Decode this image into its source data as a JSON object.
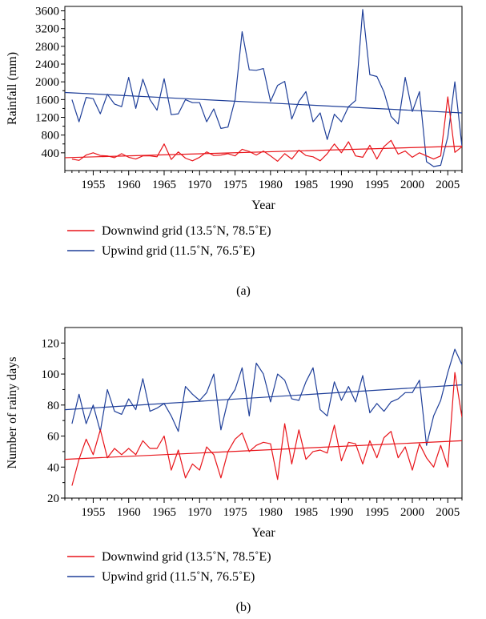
{
  "chart_data": [
    {
      "type": "line",
      "caption": "(a)",
      "xlabel": "Year",
      "ylabel": "Rainfall (mm)",
      "xlim": [
        1951,
        2007
      ],
      "ylim": [
        0,
        3700
      ],
      "xticks": [
        1955,
        1960,
        1965,
        1970,
        1975,
        1980,
        1985,
        1990,
        1995,
        2000,
        2005
      ],
      "yticks": [
        400,
        800,
        1200,
        1600,
        2000,
        2400,
        2800,
        3200,
        3600
      ],
      "legend_position": "bottom",
      "x": [
        1952,
        1953,
        1954,
        1955,
        1956,
        1957,
        1958,
        1959,
        1960,
        1961,
        1962,
        1963,
        1964,
        1965,
        1966,
        1967,
        1968,
        1969,
        1970,
        1971,
        1972,
        1973,
        1974,
        1975,
        1976,
        1977,
        1978,
        1979,
        1980,
        1981,
        1982,
        1983,
        1984,
        1985,
        1986,
        1987,
        1988,
        1989,
        1990,
        1991,
        1992,
        1993,
        1994,
        1995,
        1996,
        1997,
        1998,
        1999,
        2000,
        2001,
        2002,
        2003,
        2004,
        2005,
        2006,
        2007
      ],
      "series": [
        {
          "name": "Downwind grid (13.5˚N, 78.5˚E)",
          "color": "#e8141a",
          "values": [
            260,
            230,
            350,
            400,
            340,
            330,
            290,
            380,
            300,
            260,
            330,
            330,
            310,
            600,
            250,
            420,
            280,
            220,
            300,
            420,
            340,
            350,
            380,
            330,
            480,
            430,
            350,
            440,
            330,
            210,
            380,
            260,
            460,
            340,
            310,
            220,
            380,
            600,
            400,
            650,
            330,
            300,
            570,
            260,
            540,
            680,
            370,
            440,
            300,
            400,
            330,
            260,
            330,
            1660,
            410,
            540
          ],
          "trend": [
            290,
            550
          ]
        },
        {
          "name": "Upwind grid (11.5˚N, 76.5˚E)",
          "color": "#1f3f99",
          "values": [
            1600,
            1100,
            1650,
            1620,
            1280,
            1720,
            1500,
            1440,
            2100,
            1400,
            2060,
            1600,
            1360,
            2070,
            1260,
            1280,
            1600,
            1530,
            1530,
            1100,
            1390,
            950,
            980,
            1600,
            3130,
            2270,
            2260,
            2300,
            1560,
            1920,
            2010,
            1160,
            1560,
            1780,
            1100,
            1300,
            700,
            1270,
            1100,
            1440,
            1580,
            3630,
            2160,
            2120,
            1770,
            1220,
            1050,
            2100,
            1330,
            1780,
            200,
            90,
            120,
            760,
            2000,
            540
          ],
          "trend": [
            1760,
            1300
          ]
        }
      ]
    },
    {
      "type": "line",
      "caption": "(b)",
      "xlabel": "Year",
      "ylabel": "Number of rainy days",
      "xlim": [
        1951,
        2007
      ],
      "ylim": [
        20,
        130
      ],
      "xticks": [
        1955,
        1960,
        1965,
        1970,
        1975,
        1980,
        1985,
        1990,
        1995,
        2000,
        2005
      ],
      "yticks": [
        20,
        40,
        60,
        80,
        100,
        120
      ],
      "legend_position": "bottom",
      "x": [
        1952,
        1953,
        1954,
        1955,
        1956,
        1957,
        1958,
        1959,
        1960,
        1961,
        1962,
        1963,
        1964,
        1965,
        1966,
        1967,
        1968,
        1969,
        1970,
        1971,
        1972,
        1973,
        1974,
        1975,
        1976,
        1977,
        1978,
        1979,
        1980,
        1981,
        1982,
        1983,
        1984,
        1985,
        1986,
        1987,
        1988,
        1989,
        1990,
        1991,
        1992,
        1993,
        1994,
        1995,
        1996,
        1997,
        1998,
        1999,
        2000,
        2001,
        2002,
        2003,
        2004,
        2005,
        2006,
        2007
      ],
      "series": [
        {
          "name": "Downwind grid (13.5˚N, 78.5˚E)",
          "color": "#e8141a",
          "values": [
            28,
            45,
            58,
            48,
            64,
            46,
            52,
            48,
            52,
            48,
            57,
            52,
            52,
            60,
            38,
            51,
            33,
            42,
            38,
            53,
            48,
            33,
            50,
            58,
            62,
            50,
            54,
            56,
            55,
            32,
            68,
            42,
            64,
            45,
            50,
            51,
            49,
            67,
            44,
            56,
            55,
            42,
            57,
            46,
            59,
            63,
            46,
            53,
            38,
            55,
            46,
            40,
            54,
            40,
            101,
            72
          ],
          "trend": [
            45,
            57
          ]
        },
        {
          "name": "Upwind grid (11.5˚N, 76.5˚E)",
          "color": "#1f3f99",
          "values": [
            68,
            87,
            68,
            80,
            63,
            90,
            76,
            74,
            84,
            77,
            97,
            76,
            78,
            81,
            73,
            63,
            92,
            87,
            83,
            88,
            100,
            64,
            83,
            90,
            104,
            73,
            107,
            100,
            82,
            100,
            96,
            84,
            83,
            95,
            104,
            77,
            73,
            95,
            83,
            92,
            82,
            99,
            75,
            81,
            76,
            82,
            84,
            88,
            88,
            96,
            54,
            73,
            83,
            101,
            116,
            106
          ],
          "trend": [
            77,
            93
          ]
        }
      ]
    }
  ]
}
